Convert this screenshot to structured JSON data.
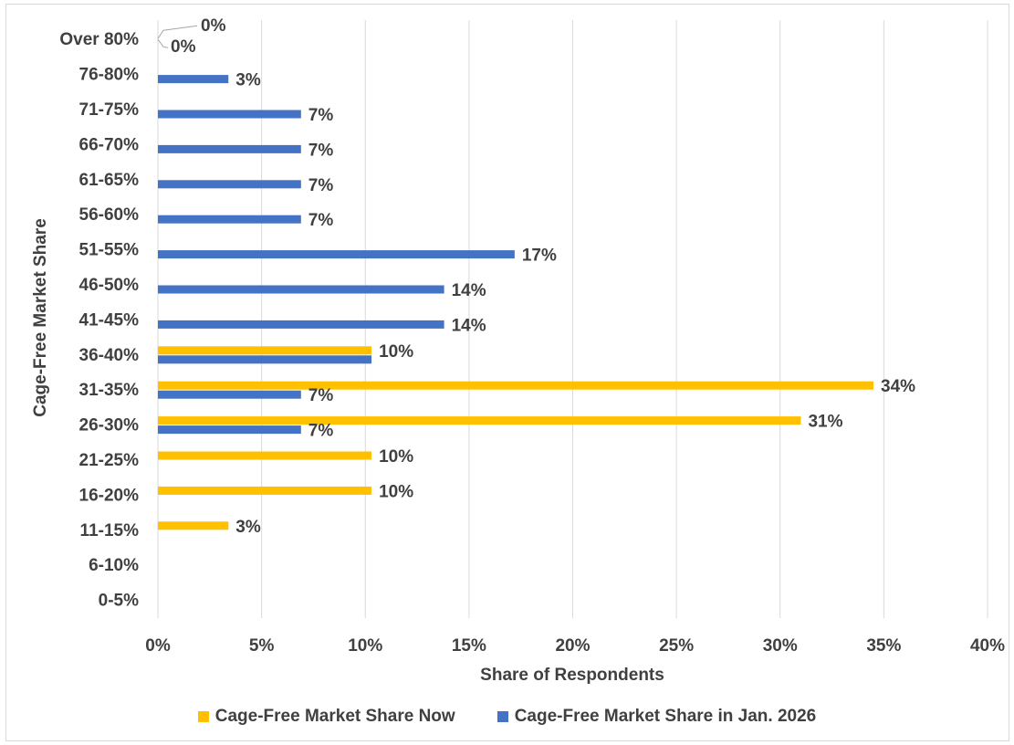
{
  "chart_data": {
    "type": "bar",
    "orientation": "horizontal",
    "xlabel": "Share of Respondents",
    "ylabel": "Cage-Free Market Share",
    "xlim": [
      0,
      40
    ],
    "x_ticks": [
      "0%",
      "5%",
      "10%",
      "15%",
      "20%",
      "25%",
      "30%",
      "35%",
      "40%"
    ],
    "grid": "vertical",
    "legend_position": "bottom",
    "categories": [
      "0-5%",
      "6-10%",
      "11-15%",
      "16-20%",
      "21-25%",
      "26-30%",
      "31-35%",
      "36-40%",
      "41-45%",
      "46-50%",
      "51-55%",
      "56-60%",
      "61-65%",
      "66-70%",
      "71-75%",
      "76-80%",
      "Over 80%"
    ],
    "series": [
      {
        "name": "Cage-Free Market Share Now",
        "color": "#FFC000",
        "values": [
          0,
          0,
          3.4,
          10.3,
          10.3,
          31,
          34.5,
          10.3,
          0,
          0,
          0,
          0,
          0,
          0,
          0,
          0,
          0
        ],
        "labels": [
          "",
          "",
          "3%",
          "10%",
          "10%",
          "31%",
          "34%",
          "10%",
          "",
          "",
          "",
          "",
          "",
          "",
          "",
          "",
          "0%"
        ]
      },
      {
        "name": "Cage-Free Market Share in Jan. 2026",
        "color": "#4472C4",
        "values": [
          0,
          0,
          0,
          0,
          0,
          6.9,
          6.9,
          10.3,
          13.8,
          13.8,
          17.2,
          6.9,
          6.9,
          6.9,
          6.9,
          3.4,
          0
        ],
        "labels": [
          "",
          "",
          "",
          "",
          "",
          "7%",
          "7%",
          "",
          "14%",
          "14%",
          "17%",
          "7%",
          "7%",
          "7%",
          "7%",
          "3%",
          "0%"
        ]
      }
    ]
  }
}
